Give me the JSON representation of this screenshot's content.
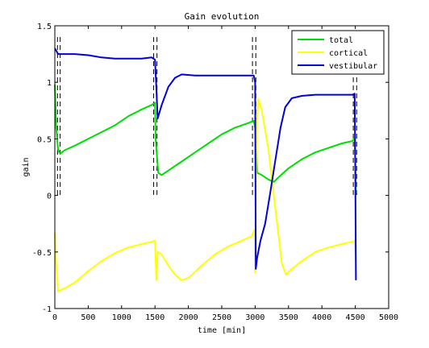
{
  "chart_data": {
    "type": "line",
    "title": "Gain evolution",
    "xlabel": "time [min]",
    "ylabel": "gain",
    "xlim": [
      0,
      5000
    ],
    "ylim": [
      -1,
      1.5
    ],
    "x_ticks": [
      0,
      500,
      1000,
      1500,
      2000,
      2500,
      3000,
      3500,
      4000,
      4500,
      5000
    ],
    "y_ticks": [
      -1,
      -0.5,
      0,
      0.5,
      1,
      1.5
    ],
    "x_tick_labels": [
      "0",
      "500",
      "1000",
      "1500",
      "2000",
      "2500",
      "3000",
      "3500",
      "4000",
      "4500",
      "5000"
    ],
    "y_tick_labels": [
      "-1",
      "-0.5",
      "0",
      "0.5",
      "1",
      "1.5"
    ],
    "grid": false,
    "legend_position": "top-right",
    "dashed_vertical_lines_x": [
      40,
      80,
      1480,
      1530,
      2960,
      3010,
      4470,
      4520
    ],
    "series": [
      {
        "name": "total",
        "color": "#00dd00",
        "points": [
          [
            0,
            0.98
          ],
          [
            20,
            0.6
          ],
          [
            50,
            0.4
          ],
          [
            80,
            0.37
          ],
          [
            150,
            0.4
          ],
          [
            300,
            0.44
          ],
          [
            500,
            0.5
          ],
          [
            700,
            0.56
          ],
          [
            900,
            0.62
          ],
          [
            1100,
            0.7
          ],
          [
            1300,
            0.76
          ],
          [
            1450,
            0.8
          ],
          [
            1500,
            0.82
          ],
          [
            1510,
            0.5
          ],
          [
            1550,
            0.2
          ],
          [
            1600,
            0.18
          ],
          [
            1700,
            0.22
          ],
          [
            1900,
            0.3
          ],
          [
            2100,
            0.38
          ],
          [
            2300,
            0.46
          ],
          [
            2500,
            0.54
          ],
          [
            2700,
            0.6
          ],
          [
            2900,
            0.64
          ],
          [
            2980,
            0.66
          ],
          [
            3000,
            0.6
          ],
          [
            3030,
            0.2
          ],
          [
            3100,
            0.18
          ],
          [
            3200,
            0.14
          ],
          [
            3280,
            0.12
          ],
          [
            3350,
            0.16
          ],
          [
            3500,
            0.24
          ],
          [
            3700,
            0.32
          ],
          [
            3900,
            0.38
          ],
          [
            4100,
            0.42
          ],
          [
            4300,
            0.46
          ],
          [
            4450,
            0.48
          ],
          [
            4490,
            0.5
          ],
          [
            4500,
            0.3
          ],
          [
            4510,
            0.02
          ]
        ]
      },
      {
        "name": "cortical",
        "color": "#ffff00",
        "points": [
          [
            0,
            -0.33
          ],
          [
            20,
            -0.6
          ],
          [
            50,
            -0.85
          ],
          [
            80,
            -0.84
          ],
          [
            150,
            -0.82
          ],
          [
            300,
            -0.77
          ],
          [
            500,
            -0.67
          ],
          [
            700,
            -0.58
          ],
          [
            900,
            -0.51
          ],
          [
            1100,
            -0.46
          ],
          [
            1300,
            -0.43
          ],
          [
            1450,
            -0.41
          ],
          [
            1500,
            -0.4
          ],
          [
            1520,
            -0.75
          ],
          [
            1540,
            -0.5
          ],
          [
            1600,
            -0.52
          ],
          [
            1700,
            -0.62
          ],
          [
            1800,
            -0.7
          ],
          [
            1900,
            -0.75
          ],
          [
            2000,
            -0.73
          ],
          [
            2200,
            -0.62
          ],
          [
            2400,
            -0.52
          ],
          [
            2600,
            -0.45
          ],
          [
            2800,
            -0.4
          ],
          [
            2950,
            -0.36
          ],
          [
            2990,
            -0.3
          ],
          [
            3000,
            -0.68
          ],
          [
            3020,
            0.62
          ],
          [
            3050,
            0.85
          ],
          [
            3100,
            0.75
          ],
          [
            3200,
            0.4
          ],
          [
            3300,
            -0.1
          ],
          [
            3400,
            -0.6
          ],
          [
            3460,
            -0.7
          ],
          [
            3550,
            -0.65
          ],
          [
            3700,
            -0.58
          ],
          [
            3900,
            -0.5
          ],
          [
            4100,
            -0.46
          ],
          [
            4300,
            -0.43
          ],
          [
            4450,
            -0.41
          ],
          [
            4490,
            -0.4
          ],
          [
            4510,
            -0.58
          ]
        ]
      },
      {
        "name": "vestibular",
        "color": "#0000dd",
        "points": [
          [
            0,
            1.3
          ],
          [
            20,
            1.28
          ],
          [
            50,
            1.25
          ],
          [
            100,
            1.25
          ],
          [
            300,
            1.25
          ],
          [
            500,
            1.24
          ],
          [
            700,
            1.22
          ],
          [
            900,
            1.21
          ],
          [
            1100,
            1.21
          ],
          [
            1300,
            1.21
          ],
          [
            1450,
            1.22
          ],
          [
            1500,
            1.2
          ],
          [
            1520,
            0.95
          ],
          [
            1540,
            0.68
          ],
          [
            1600,
            0.8
          ],
          [
            1700,
            0.96
          ],
          [
            1800,
            1.04
          ],
          [
            1900,
            1.07
          ],
          [
            2100,
            1.06
          ],
          [
            2300,
            1.06
          ],
          [
            2500,
            1.06
          ],
          [
            2700,
            1.06
          ],
          [
            2900,
            1.06
          ],
          [
            2980,
            1.06
          ],
          [
            3000,
            1.0
          ],
          [
            3010,
            -0.65
          ],
          [
            3030,
            -0.55
          ],
          [
            3080,
            -0.4
          ],
          [
            3150,
            -0.25
          ],
          [
            3220,
            0.0
          ],
          [
            3300,
            0.3
          ],
          [
            3380,
            0.6
          ],
          [
            3450,
            0.78
          ],
          [
            3550,
            0.86
          ],
          [
            3700,
            0.88
          ],
          [
            3900,
            0.89
          ],
          [
            4100,
            0.89
          ],
          [
            4300,
            0.89
          ],
          [
            4480,
            0.89
          ],
          [
            4490,
            0.9
          ],
          [
            4500,
            0.2
          ],
          [
            4510,
            -0.75
          ]
        ]
      }
    ]
  }
}
